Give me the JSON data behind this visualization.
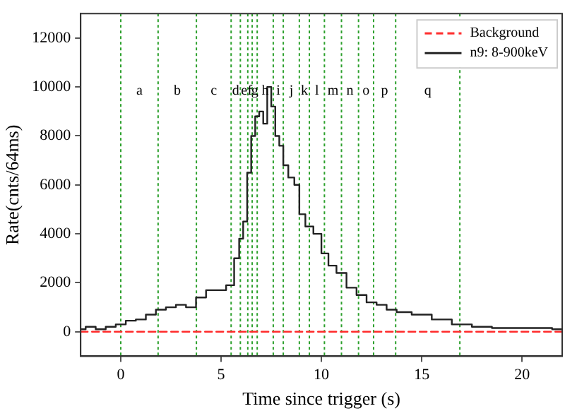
{
  "chart_data": {
    "type": "line",
    "xlabel": "Time since trigger (s)",
    "ylabel": "Rate(cnts/64ms)",
    "xlim": [
      -2,
      22
    ],
    "ylim": [
      -1000,
      13000
    ],
    "xticks": [
      0,
      5,
      10,
      15,
      20
    ],
    "yticks": [
      0,
      2000,
      4000,
      6000,
      8000,
      10000,
      12000
    ],
    "grid": false,
    "legend": "top right",
    "marker": "none",
    "series": [
      {
        "name": "Background",
        "line_style": "dashed",
        "color": "#ff2a2a",
        "x": [
          -2,
          22
        ],
        "values": [
          0,
          0
        ]
      },
      {
        "name": "n9: 8-900keV",
        "type": "step",
        "line_style": "solid",
        "color": "#222222",
        "x": [
          -2,
          -1.5,
          -1,
          -0.5,
          0,
          0.5,
          1,
          1.5,
          2,
          2.5,
          3,
          3.5,
          4,
          4.5,
          5,
          5.5,
          5.8,
          6,
          6.2,
          6.4,
          6.6,
          6.8,
          7,
          7.2,
          7.4,
          7.6,
          7.8,
          8,
          8.2,
          8.5,
          8.8,
          9,
          9.4,
          9.8,
          10.2,
          10.5,
          11,
          11.5,
          12,
          12.5,
          13,
          13.5,
          14,
          15,
          16,
          17,
          18,
          19,
          20,
          21,
          22
        ],
        "values": [
          100,
          200,
          100,
          200,
          300,
          450,
          500,
          700,
          900,
          1000,
          1100,
          1000,
          1400,
          1700,
          1700,
          1900,
          3000,
          3800,
          4500,
          6500,
          8000,
          8800,
          9000,
          8500,
          10000,
          9200,
          8000,
          7600,
          6800,
          6300,
          6000,
          4800,
          4300,
          4000,
          3200,
          2700,
          2400,
          1800,
          1500,
          1200,
          1100,
          900,
          800,
          700,
          500,
          300,
          200,
          150,
          150,
          150,
          100
        ]
      }
    ],
    "ref_lines": [
      {
        "axis": "x",
        "value": 0,
        "color": "#2ca02c",
        "line_style": "dotted"
      },
      {
        "axis": "x",
        "value": 1.86,
        "color": "#2ca02c",
        "line_style": "dotted"
      },
      {
        "axis": "x",
        "value": 3.77,
        "color": "#2ca02c",
        "line_style": "dotted"
      },
      {
        "axis": "x",
        "value": 5.5,
        "color": "#2ca02c",
        "line_style": "dotted"
      },
      {
        "axis": "x",
        "value": 5.96,
        "color": "#2ca02c",
        "line_style": "dotted"
      },
      {
        "axis": "x",
        "value": 6.33,
        "color": "#2ca02c",
        "line_style": "dotted"
      },
      {
        "axis": "x",
        "value": 6.55,
        "color": "#2ca02c",
        "line_style": "dotted"
      },
      {
        "axis": "x",
        "value": 6.8,
        "color": "#2ca02c",
        "line_style": "dotted"
      },
      {
        "axis": "x",
        "value": 7.6,
        "color": "#2ca02c",
        "line_style": "dotted"
      },
      {
        "axis": "x",
        "value": 8.1,
        "color": "#2ca02c",
        "line_style": "dotted"
      },
      {
        "axis": "x",
        "value": 8.9,
        "color": "#2ca02c",
        "line_style": "dotted"
      },
      {
        "axis": "x",
        "value": 9.4,
        "color": "#2ca02c",
        "line_style": "dotted"
      },
      {
        "axis": "x",
        "value": 10.15,
        "color": "#2ca02c",
        "line_style": "dotted"
      },
      {
        "axis": "x",
        "value": 11.0,
        "color": "#2ca02c",
        "line_style": "dotted"
      },
      {
        "axis": "x",
        "value": 11.85,
        "color": "#2ca02c",
        "line_style": "dotted"
      },
      {
        "axis": "x",
        "value": 12.6,
        "color": "#2ca02c",
        "line_style": "dotted"
      },
      {
        "axis": "x",
        "value": 13.7,
        "color": "#2ca02c",
        "line_style": "dotted"
      },
      {
        "axis": "x",
        "value": 16.9,
        "color": "#2ca02c",
        "line_style": "dotted"
      }
    ],
    "annotations": [
      "a",
      "b",
      "c",
      "d",
      "e",
      "f",
      "g",
      "h",
      "i",
      "j",
      "k",
      "l",
      "m",
      "n",
      "o",
      "p",
      "q"
    ]
  }
}
